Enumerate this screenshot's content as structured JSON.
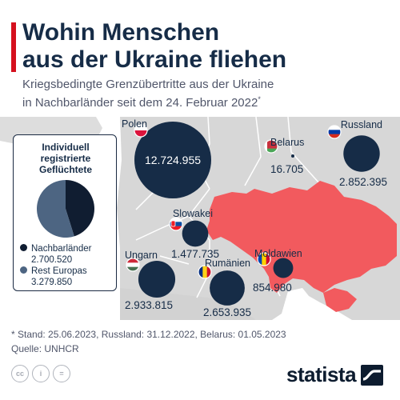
{
  "header": {
    "title_line1": "Wohin Menschen",
    "title_line2": "aus der Ukraine fliehen",
    "subtitle_line1": "Kriegsbedingte Grenzübertritte aus der Ukraine",
    "subtitle_line2": "in Nachbarländer seit dem 24. Februar 2022",
    "subtitle_marker": "*"
  },
  "colors": {
    "ukraine": "#f25a5e",
    "land": "#d7d7d7",
    "bubble": "#162c47",
    "rest_europe": "#4d6582",
    "accent": "#d5101e"
  },
  "chart_data": [
    {
      "type": "pie",
      "title": "Individuell registrierte Geflüchtete",
      "title_lines": [
        "Individuell",
        "registrierte",
        "Geflüchtete"
      ],
      "slices": [
        {
          "name": "Nachbarländer",
          "label": "2.700.520",
          "value": 2700520,
          "color": "#101d31"
        },
        {
          "name": "Rest Europas",
          "label": "3.279.850",
          "value": 3279850,
          "color": "#4d6582"
        }
      ]
    },
    {
      "type": "scatter",
      "series": [
        {
          "name": "Polen",
          "label": "12.724.955",
          "value": 12724955
        },
        {
          "name": "Belarus",
          "label": "16.705",
          "value": 16705
        },
        {
          "name": "Russland",
          "label": "2.852.395",
          "value": 2852395
        },
        {
          "name": "Slowakei",
          "label": "1.477.735",
          "value": 1477735
        },
        {
          "name": "Ungarn",
          "label": "2.933.815",
          "value": 2933815
        },
        {
          "name": "Rumänien",
          "label": "2.653.935",
          "value": 2653935
        },
        {
          "name": "Moldawien",
          "label": "854.980",
          "value": 854980
        }
      ]
    }
  ],
  "footer": {
    "note": "* Stand: 25.06.2023, Russland: 31.12.2022, Belarus: 01.05.2023",
    "source": "Quelle: UNHCR",
    "cc_icons": [
      "cc-icon",
      "by-icon",
      "nd-icon"
    ],
    "cc_labels": [
      "cc",
      "i",
      "="
    ],
    "brand": "statista"
  }
}
